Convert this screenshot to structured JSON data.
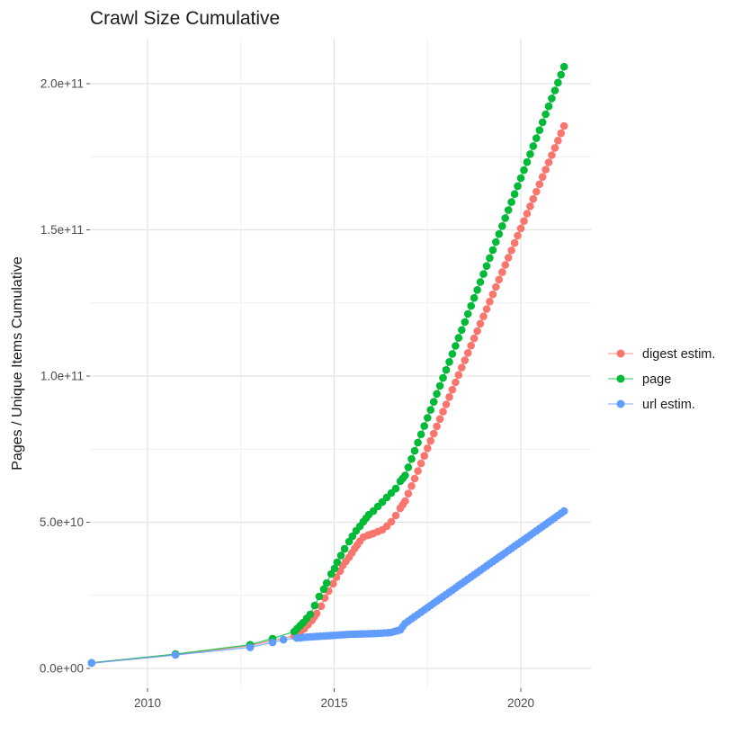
{
  "chart_data": {
    "type": "scatter-line",
    "title": "Crawl Size Cumulative",
    "xlabel": "",
    "ylabel": "Pages / Unique Items Cumulative",
    "grid": true,
    "legend_position": "right",
    "background": "#ffffff",
    "grid_major_color": "#e3e3e3",
    "grid_minor_color": "#f1f1f1",
    "tick_text_color": "#4d4d4d",
    "title_color": "#1a1a1a",
    "xlim": [
      2008.45,
      2021.85
    ],
    "ylim": [
      0,
      215000000000.0
    ],
    "x_ticks": {
      "values": [
        2010,
        2015,
        2020
      ],
      "labels": [
        "2010",
        "2015",
        "2020"
      ],
      "minor": [
        2012.5,
        2017.5
      ]
    },
    "y_ticks": {
      "values": [
        0,
        50000000000.0,
        100000000000.0,
        150000000000.0,
        200000000000.0
      ],
      "labels": [
        "0.0e+00",
        "5.0e+10",
        "1.0e+11",
        "1.5e+11",
        "2.0e+11"
      ],
      "minor": [
        25000000000.0,
        75000000000.0,
        125000000000.0,
        175000000000.0
      ]
    },
    "series": [
      {
        "name": "digest estim.",
        "color": "#F8766D",
        "points": [
          [
            2008.5,
            1900000000.0
          ],
          [
            2010.75,
            4700000000.0
          ],
          [
            2012.75,
            7800000000.0
          ],
          [
            2013.35,
            9600000000.0
          ],
          [
            2013.93,
            11100000000.0
          ],
          [
            2014.2,
            13600000000.0
          ],
          [
            2014.4,
            16400000000.0
          ],
          [
            2014.53,
            18800000000.0
          ],
          [
            2014.65,
            21300000000.0
          ],
          [
            2014.75,
            24100000000.0
          ],
          [
            2014.85,
            26500000000.0
          ],
          [
            2014.97,
            29000000000.0
          ],
          [
            2015.06,
            31200000000.0
          ],
          [
            2015.16,
            33300000000.0
          ],
          [
            2015.23,
            35200000000.0
          ],
          [
            2015.4,
            38000000000.0
          ],
          [
            2015.55,
            41000000000.0
          ],
          [
            2015.69,
            43500000000.0
          ],
          [
            2015.78,
            44900000000.0
          ],
          [
            2015.9,
            45500000000.0
          ],
          [
            2016.05,
            46200000000.0
          ],
          [
            2016.17,
            46800000000.0
          ],
          [
            2016.29,
            47400000000.0
          ],
          [
            2016.41,
            48600000000.0
          ],
          [
            2016.53,
            50200000000.0
          ],
          [
            2016.65,
            52300000000.0
          ],
          [
            2016.77,
            54800000000.0
          ],
          [
            2016.9,
            57200000000.0
          ],
          [
            2017.5,
            75300000000.0
          ],
          [
            2018.0,
            90300000000.0
          ],
          [
            2018.5,
            105400000000.0
          ],
          [
            2019.0,
            120400000000.0
          ],
          [
            2019.5,
            135500000000.0
          ],
          [
            2020.0,
            150500000000.0
          ],
          [
            2020.5,
            165600000000.0
          ],
          [
            2021.16,
            185500000000.0
          ]
        ]
      },
      {
        "name": "page",
        "color": "#00BA38",
        "points": [
          [
            2008.5,
            1900000000.0
          ],
          [
            2010.75,
            4900000000.0
          ],
          [
            2012.75,
            8100000000.0
          ],
          [
            2013.35,
            10200000000.0
          ],
          [
            2013.93,
            12600000000.0
          ],
          [
            2014.17,
            15700000000.0
          ],
          [
            2014.36,
            18500000000.0
          ],
          [
            2014.48,
            21500000000.0
          ],
          [
            2014.6,
            24600000000.0
          ],
          [
            2014.72,
            27100000000.0
          ],
          [
            2014.8,
            29200000000.0
          ],
          [
            2014.92,
            32300000000.0
          ],
          [
            2015.01,
            34200000000.0
          ],
          [
            2015.08,
            36300000000.0
          ],
          [
            2015.28,
            40900000000.0
          ],
          [
            2015.4,
            43400000000.0
          ],
          [
            2015.49,
            45200000000.0
          ],
          [
            2015.59,
            47100000000.0
          ],
          [
            2015.69,
            48600000000.0
          ],
          [
            2015.78,
            50200000000.0
          ],
          [
            2015.93,
            52600000000.0
          ],
          [
            2016.05,
            53800000000.0
          ],
          [
            2016.17,
            55400000000.0
          ],
          [
            2016.29,
            56900000000.0
          ],
          [
            2016.41,
            58500000000.0
          ],
          [
            2016.53,
            60000000000.0
          ],
          [
            2016.65,
            61500000000.0
          ],
          [
            2016.77,
            64000000000.0
          ],
          [
            2016.9,
            66000000000.0
          ],
          [
            2017.5,
            85700000000.0
          ],
          [
            2018.0,
            102100000000.0
          ],
          [
            2018.5,
            118500000000.0
          ],
          [
            2019.0,
            134900000000.0
          ],
          [
            2019.5,
            151300000000.0
          ],
          [
            2020.0,
            167700000000.0
          ],
          [
            2020.5,
            184100000000.0
          ],
          [
            2021.16,
            205800000000.0
          ]
        ]
      },
      {
        "name": "url estim.",
        "color": "#619CFF",
        "points": [
          [
            2008.5,
            1800000000.0
          ],
          [
            2010.75,
            4600000000.0
          ],
          [
            2012.75,
            7200000000.0
          ],
          [
            2013.35,
            8900000000.0
          ],
          [
            2013.64,
            9800000000.0
          ],
          [
            2014.0,
            10400000000.0
          ],
          [
            2014.36,
            10800000000.0
          ],
          [
            2014.72,
            11100000000.0
          ],
          [
            2015.08,
            11400000000.0
          ],
          [
            2015.45,
            11700000000.0
          ],
          [
            2015.8,
            11800000000.0
          ],
          [
            2016.17,
            12000000000.0
          ],
          [
            2016.53,
            12300000000.0
          ],
          [
            2016.77,
            13200000000.0
          ],
          [
            2016.9,
            15400000000.0
          ],
          [
            2017.5,
            20800000000.0
          ],
          [
            2018.0,
            25300000000.0
          ],
          [
            2018.5,
            29800000000.0
          ],
          [
            2019.0,
            34300000000.0
          ],
          [
            2019.5,
            38800000000.0
          ],
          [
            2020.0,
            43300000000.0
          ],
          [
            2020.5,
            47800000000.0
          ],
          [
            2021.16,
            53800000000.0
          ]
        ]
      }
    ]
  }
}
